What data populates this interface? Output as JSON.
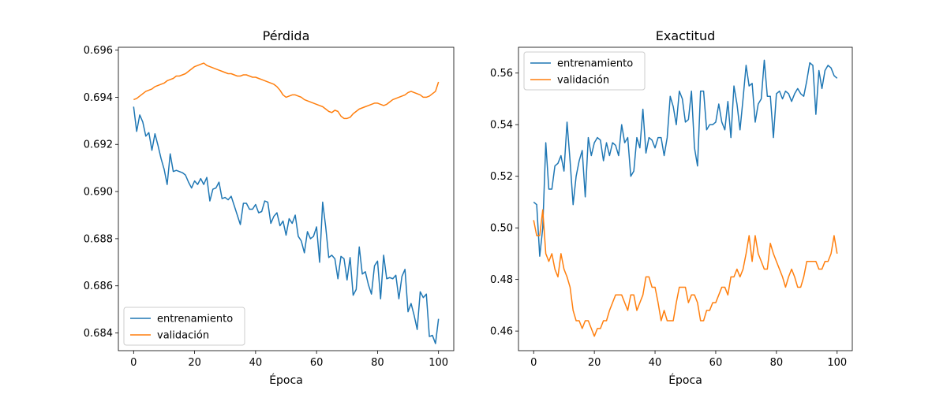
{
  "chart_data": [
    {
      "type": "line",
      "title": "Pérdida",
      "xlabel": "Época",
      "ylabel": "",
      "xlim": [
        -5,
        105
      ],
      "ylim": [
        0.68325,
        0.69612
      ],
      "xticks": [
        0,
        20,
        40,
        60,
        80,
        100
      ],
      "yticks": [
        0.684,
        0.686,
        0.688,
        0.69,
        0.692,
        0.694,
        0.696
      ],
      "ytick_labels": [
        "0.684",
        "0.686",
        "0.688",
        "0.690",
        "0.692",
        "0.694",
        "0.696"
      ],
      "legend_loc": "lower-left",
      "series": [
        {
          "name": "entrenamiento",
          "color": "#1f77b4",
          "x_start": 0,
          "values": [
            0.6936,
            0.69255,
            0.69325,
            0.69295,
            0.69235,
            0.6925,
            0.69175,
            0.69245,
            0.69195,
            0.6914,
            0.69095,
            0.6903,
            0.6916,
            0.69085,
            0.6909,
            0.69085,
            0.6908,
            0.6907,
            0.6904,
            0.69015,
            0.69045,
            0.6903,
            0.69055,
            0.6903,
            0.6906,
            0.6896,
            0.6901,
            0.69015,
            0.6904,
            0.6897,
            0.68975,
            0.68965,
            0.6898,
            0.6894,
            0.689,
            0.6886,
            0.6895,
            0.6895,
            0.68925,
            0.68925,
            0.68945,
            0.6891,
            0.68915,
            0.6896,
            0.68955,
            0.68865,
            0.68895,
            0.6891,
            0.68855,
            0.68875,
            0.68815,
            0.68885,
            0.68865,
            0.689,
            0.6881,
            0.6879,
            0.6874,
            0.6883,
            0.688,
            0.6881,
            0.6885,
            0.687,
            0.68955,
            0.6885,
            0.6872,
            0.6873,
            0.68715,
            0.6863,
            0.68725,
            0.68715,
            0.68625,
            0.6872,
            0.6856,
            0.68585,
            0.68765,
            0.6865,
            0.6866,
            0.68605,
            0.68565,
            0.68685,
            0.68705,
            0.68545,
            0.6873,
            0.6863,
            0.68635,
            0.6863,
            0.68645,
            0.68545,
            0.6864,
            0.6867,
            0.6849,
            0.68525,
            0.68475,
            0.68415,
            0.68575,
            0.6855,
            0.68565,
            0.68385,
            0.6839,
            0.68355,
            0.6846
          ]
        },
        {
          "name": "validación",
          "color": "#ff7f0e",
          "x_start": 0,
          "values": [
            0.6939,
            0.69395,
            0.69405,
            0.69415,
            0.69425,
            0.6943,
            0.69435,
            0.69445,
            0.6945,
            0.69455,
            0.6946,
            0.6947,
            0.69475,
            0.6948,
            0.6949,
            0.6949,
            0.69495,
            0.695,
            0.6951,
            0.6952,
            0.6953,
            0.69535,
            0.6954,
            0.69545,
            0.69535,
            0.6953,
            0.69525,
            0.6952,
            0.69515,
            0.6951,
            0.69505,
            0.695,
            0.695,
            0.69495,
            0.6949,
            0.6949,
            0.69495,
            0.69495,
            0.6949,
            0.69485,
            0.69485,
            0.6948,
            0.69475,
            0.6947,
            0.69465,
            0.6946,
            0.69455,
            0.69445,
            0.6943,
            0.6941,
            0.694,
            0.69405,
            0.6941,
            0.6941,
            0.69405,
            0.694,
            0.6939,
            0.69385,
            0.6938,
            0.69375,
            0.6937,
            0.69365,
            0.6936,
            0.6935,
            0.6934,
            0.69335,
            0.69345,
            0.6934,
            0.6932,
            0.6931,
            0.6931,
            0.69315,
            0.6933,
            0.6934,
            0.6935,
            0.69355,
            0.6936,
            0.69365,
            0.6937,
            0.69375,
            0.69375,
            0.6937,
            0.69365,
            0.6937,
            0.6938,
            0.6939,
            0.69395,
            0.694,
            0.69405,
            0.6941,
            0.6942,
            0.69425,
            0.6942,
            0.69415,
            0.6941,
            0.694,
            0.694,
            0.69405,
            0.69415,
            0.69425,
            0.69465
          ]
        }
      ]
    },
    {
      "type": "line",
      "title": "Exactitud",
      "xlabel": "Época",
      "ylabel": "",
      "xlim": [
        -5,
        105
      ],
      "ylim": [
        0.4524,
        0.57
      ],
      "xticks": [
        0,
        20,
        40,
        60,
        80,
        100
      ],
      "yticks": [
        0.46,
        0.48,
        0.5,
        0.52,
        0.54,
        0.56
      ],
      "ytick_labels": [
        "0.46",
        "0.48",
        "0.50",
        "0.52",
        "0.54",
        "0.56"
      ],
      "legend_loc": "upper-left",
      "series": [
        {
          "name": "entrenamiento",
          "color": "#1f77b4",
          "x_start": 0,
          "values": [
            0.51,
            0.509,
            0.489,
            0.5,
            0.533,
            0.515,
            0.515,
            0.524,
            0.525,
            0.528,
            0.522,
            0.541,
            0.526,
            0.509,
            0.52,
            0.526,
            0.53,
            0.512,
            0.535,
            0.528,
            0.533,
            0.535,
            0.534,
            0.526,
            0.533,
            0.528,
            0.533,
            0.532,
            0.528,
            0.54,
            0.533,
            0.535,
            0.52,
            0.522,
            0.535,
            0.531,
            0.546,
            0.529,
            0.535,
            0.534,
            0.531,
            0.535,
            0.535,
            0.528,
            0.535,
            0.551,
            0.547,
            0.54,
            0.553,
            0.55,
            0.541,
            0.542,
            0.553,
            0.531,
            0.524,
            0.553,
            0.553,
            0.538,
            0.54,
            0.54,
            0.541,
            0.548,
            0.541,
            0.538,
            0.549,
            0.535,
            0.555,
            0.548,
            0.538,
            0.55,
            0.563,
            0.555,
            0.556,
            0.541,
            0.548,
            0.55,
            0.565,
            0.551,
            0.551,
            0.535,
            0.552,
            0.553,
            0.55,
            0.553,
            0.552,
            0.549,
            0.552,
            0.554,
            0.552,
            0.551,
            0.557,
            0.564,
            0.563,
            0.544,
            0.561,
            0.554,
            0.561,
            0.563,
            0.562,
            0.559,
            0.558
          ]
        },
        {
          "name": "validación",
          "color": "#ff7f0e",
          "x_start": 0,
          "values": [
            0.503,
            0.497,
            0.497,
            0.507,
            0.49,
            0.487,
            0.49,
            0.484,
            0.481,
            0.49,
            0.484,
            0.481,
            0.477,
            0.468,
            0.464,
            0.464,
            0.461,
            0.464,
            0.464,
            0.461,
            0.458,
            0.461,
            0.461,
            0.464,
            0.464,
            0.468,
            0.471,
            0.474,
            0.474,
            0.474,
            0.471,
            0.468,
            0.474,
            0.474,
            0.468,
            0.471,
            0.474,
            0.481,
            0.481,
            0.477,
            0.477,
            0.471,
            0.464,
            0.468,
            0.464,
            0.464,
            0.464,
            0.471,
            0.477,
            0.477,
            0.477,
            0.471,
            0.474,
            0.474,
            0.471,
            0.464,
            0.464,
            0.468,
            0.468,
            0.471,
            0.471,
            0.474,
            0.477,
            0.477,
            0.474,
            0.481,
            0.481,
            0.484,
            0.481,
            0.484,
            0.49,
            0.497,
            0.487,
            0.497,
            0.49,
            0.487,
            0.484,
            0.484,
            0.494,
            0.49,
            0.487,
            0.484,
            0.481,
            0.477,
            0.481,
            0.484,
            0.481,
            0.477,
            0.477,
            0.481,
            0.487,
            0.487,
            0.487,
            0.487,
            0.484,
            0.484,
            0.487,
            0.487,
            0.49,
            0.497,
            0.49
          ]
        }
      ]
    }
  ]
}
